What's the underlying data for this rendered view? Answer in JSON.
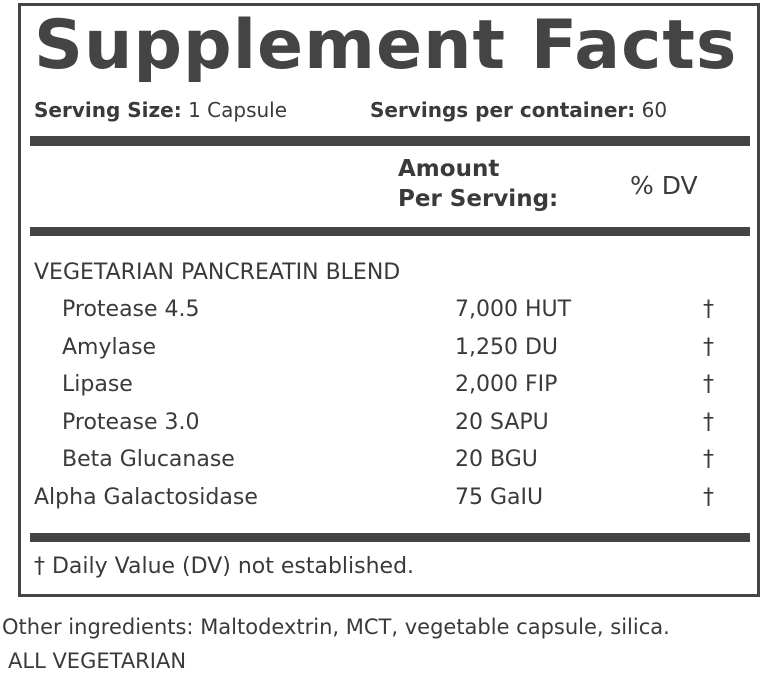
{
  "label": {
    "title": "Supplement Facts",
    "serving_size": {
      "label": "Serving Size:",
      "value": "1 Capsule"
    },
    "servings_per_container": {
      "label": "Servings per container:",
      "value": "60"
    },
    "header": {
      "amount": [
        "Amount",
        "Per Serving:"
      ],
      "dv": "% DV"
    },
    "blend": "VEGETARIAN PANCREATIN BLEND",
    "rows": [
      {
        "name": "Protease 4.5",
        "amount": "7,000 HUT",
        "dv": "†",
        "indent": true
      },
      {
        "name": "Amylase",
        "amount": "1,250 DU",
        "dv": "†",
        "indent": true
      },
      {
        "name": "Lipase",
        "amount": "2,000 FIP",
        "dv": "†",
        "indent": true
      },
      {
        "name": "Protease 3.0",
        "amount": "20 SAPU",
        "dv": "†",
        "indent": true
      },
      {
        "name": "Beta Glucanase",
        "amount": "20 BGU",
        "dv": "†",
        "indent": true
      },
      {
        "name": "Alpha Galactosidase",
        "amount": "75 GaIU",
        "dv": "†",
        "indent": false
      }
    ],
    "footnote": "† Daily Value (DV) not established."
  },
  "other_ingredients": "Other ingredients: Maltodextrin, MCT, vegetable capsule, silica.",
  "note": "ALL VEGETARIAN"
}
